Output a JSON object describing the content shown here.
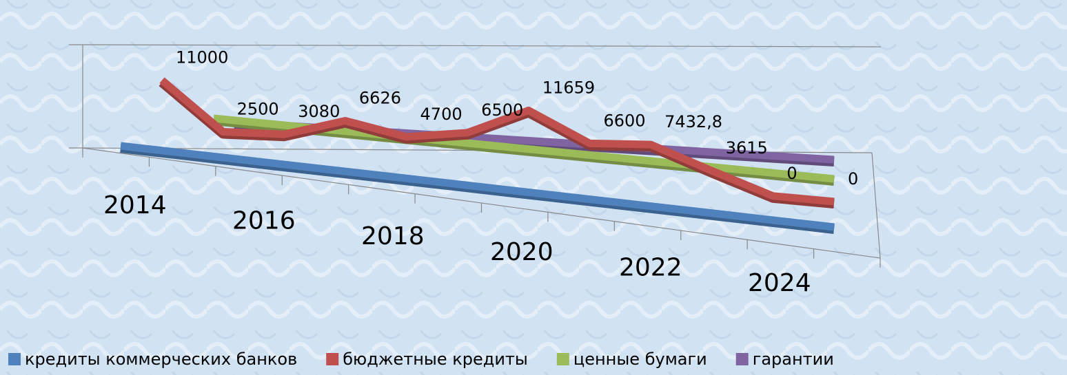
{
  "chart_data": {
    "type": "line3d",
    "categories": [
      "2014",
      null,
      "2016",
      null,
      "2018",
      null,
      "2020",
      null,
      "2022",
      null,
      "2024",
      null
    ],
    "ylim": [
      0,
      14000
    ],
    "legend": "bottom",
    "series": [
      {
        "name": "кредиты коммерческих банков",
        "color": "#4f81bd",
        "values": [
          0,
          0,
          0,
          0,
          0,
          0,
          0,
          0,
          0,
          0,
          0,
          0
        ]
      },
      {
        "name": "бюджетные кредиты",
        "color": "#c0504d",
        "values": [
          11000,
          2500,
          3080,
          6626,
          4700,
          6500,
          11659,
          6600,
          7432.8,
          3615,
          0,
          0
        ],
        "value_labels": [
          "11000",
          "2500",
          "3080",
          "6626",
          "4700",
          "6500",
          "11659",
          "6600",
          "7432,8",
          "3615",
          "0",
          "0"
        ]
      },
      {
        "name": "ценные бумаги",
        "color": "#9bbb59",
        "values": [
          0,
          0,
          0,
          0,
          0,
          0,
          0,
          0,
          0,
          0,
          0,
          0
        ]
      },
      {
        "name": "гарантии",
        "color": "#8064a2",
        "values": [
          0,
          0,
          0,
          0,
          0,
          0,
          0,
          0,
          0,
          0,
          0,
          0
        ]
      }
    ]
  }
}
